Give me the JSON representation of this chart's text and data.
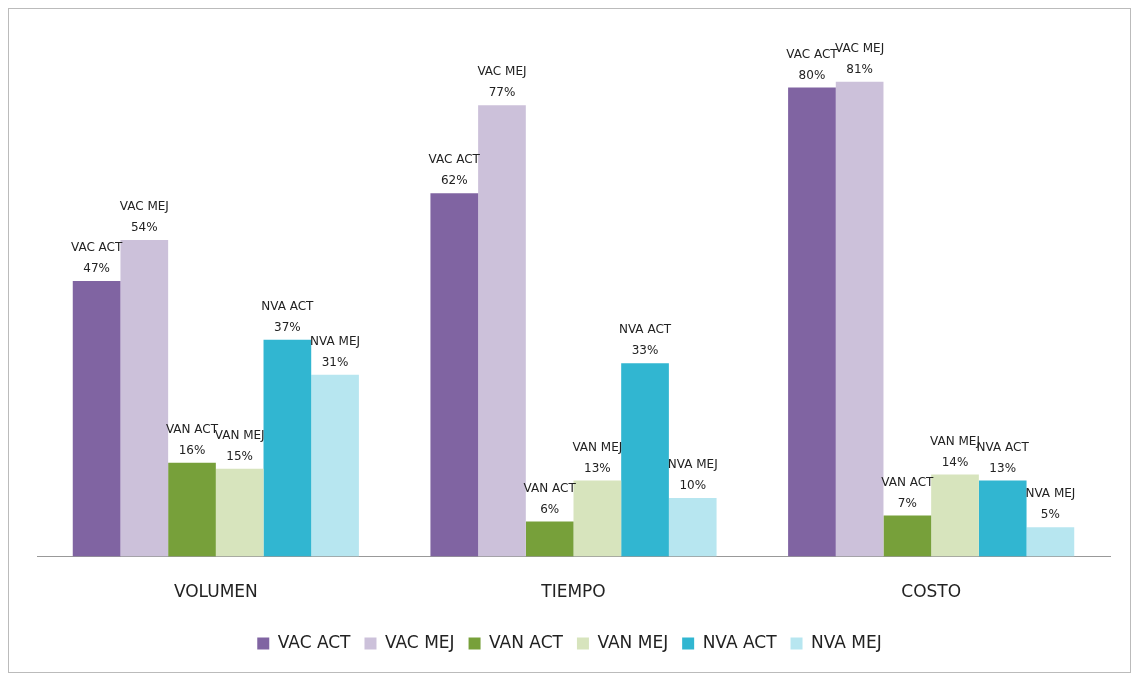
{
  "chart_data": {
    "type": "bar",
    "categories": [
      "VOLUMEN",
      "TIEMPO",
      "COSTO"
    ],
    "series": [
      {
        "name": "VAC ACT",
        "color": "#8064a2",
        "values": [
          47,
          62,
          80
        ],
        "value_labels": [
          "47%",
          "62%",
          "80%"
        ]
      },
      {
        "name": "VAC MEJ",
        "color": "#ccc1da",
        "values": [
          54,
          77,
          81
        ],
        "value_labels": [
          "54%",
          "77%",
          "81%"
        ]
      },
      {
        "name": "VAN ACT",
        "color": "#77a03a",
        "values": [
          16,
          6,
          7
        ],
        "value_labels": [
          "16%",
          "6%",
          "7%"
        ]
      },
      {
        "name": "VAN MEJ",
        "color": "#d7e4bd",
        "values": [
          15,
          13,
          14
        ],
        "value_labels": [
          "15%",
          "13%",
          "14%"
        ]
      },
      {
        "name": "NVA ACT",
        "color": "#31b6d1",
        "values": [
          37,
          33,
          13
        ],
        "value_labels": [
          "37%",
          "33%",
          "13%"
        ]
      },
      {
        "name": "NVA MEJ",
        "color": "#b7e6f0",
        "values": [
          31,
          10,
          5
        ],
        "value_labels": [
          "31%",
          "10%",
          "5%"
        ]
      }
    ],
    "tick_labels": "x",
    "grid": false,
    "legend": "bottom"
  }
}
